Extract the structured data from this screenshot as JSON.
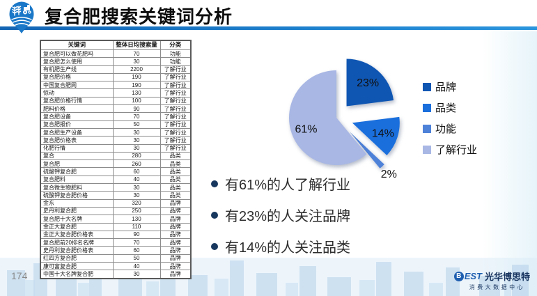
{
  "slide": {
    "title": "复合肥搜索关键词分析",
    "page_number": "174"
  },
  "table": {
    "headers": [
      "关键词",
      "整体日均搜索量",
      "分类"
    ],
    "rows": [
      [
        "复合肥可以做花肥吗",
        "70",
        "功能"
      ],
      [
        "复合肥怎么使用",
        "30",
        "功能"
      ],
      [
        "有机肥生产线",
        "2200",
        "了解行业"
      ],
      [
        "复合肥价格",
        "190",
        "了解行业"
      ],
      [
        "中国复合肥网",
        "190",
        "了解行业"
      ],
      [
        "惊动",
        "130",
        "了解行业"
      ],
      [
        "复合肥价格行情",
        "100",
        "了解行业"
      ],
      [
        "肥料价格",
        "90",
        "了解行业"
      ],
      [
        "复合肥设备",
        "70",
        "了解行业"
      ],
      [
        "复合肥报价",
        "50",
        "了解行业"
      ],
      [
        "复合肥生产设备",
        "30",
        "了解行业"
      ],
      [
        "复合肥价格表",
        "30",
        "了解行业"
      ],
      [
        "化肥行情",
        "30",
        "了解行业"
      ],
      [
        "复合",
        "280",
        "品类"
      ],
      [
        "复合肥",
        "260",
        "品类"
      ],
      [
        "硫酸钾复合肥",
        "60",
        "品类"
      ],
      [
        "复合肥料",
        "40",
        "品类"
      ],
      [
        "复合微生物肥料",
        "30",
        "品类"
      ],
      [
        "硫酸钾复合肥价格",
        "30",
        "品类"
      ],
      [
        "金东",
        "320",
        "品牌"
      ],
      [
        "史丹利复合肥",
        "250",
        "品牌"
      ],
      [
        "复合肥十大名牌",
        "130",
        "品牌"
      ],
      [
        "金正大复合肥",
        "110",
        "品牌"
      ],
      [
        "金正大复合肥价格表",
        "90",
        "品牌"
      ],
      [
        "复合肥前20排名名牌",
        "70",
        "品牌"
      ],
      [
        "史丹利复合肥价格表",
        "60",
        "品牌"
      ],
      [
        "红四方复合肥",
        "50",
        "品牌"
      ],
      [
        "康可富复合肥",
        "40",
        "品牌"
      ],
      [
        "中国十大名牌复合肥",
        "30",
        "品牌"
      ]
    ]
  },
  "chart_data": {
    "type": "pie",
    "title": "",
    "legend_position": "right",
    "slices": [
      {
        "label": "品牌",
        "value": 23,
        "color": "#0f56b3",
        "explode": 22
      },
      {
        "label": "品类",
        "value": 14,
        "color": "#1a6fdd",
        "explode": 24
      },
      {
        "label": "功能",
        "value": 2,
        "color": "#4e82d9",
        "explode": 28
      },
      {
        "label": "了解行业",
        "value": 61,
        "color": "#a8b7e4",
        "explode": 0
      }
    ]
  },
  "bullets": [
    "有61%的人了解行业",
    "有23%的人关注品牌",
    "有14%的人关注品类"
  ],
  "footer": {
    "logo_b": "B",
    "logo_est": "EST",
    "company": "光华博思特",
    "subtitle": "消费大数据中心"
  }
}
